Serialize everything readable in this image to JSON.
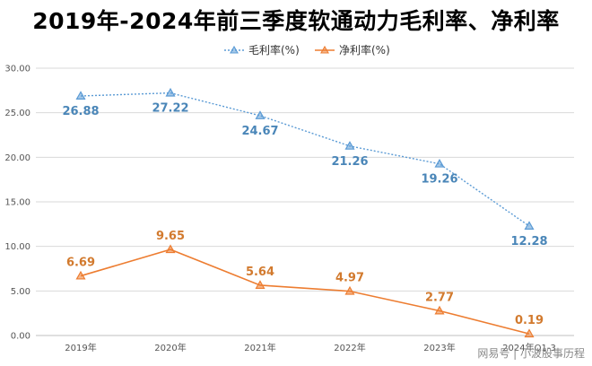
{
  "chart_data": {
    "type": "line",
    "title": "2019年-2024年前三季度软通动力毛利率、净利率",
    "categories": [
      "2019年",
      "2020年",
      "2021年",
      "2022年",
      "2023年",
      "2024年Q1-3"
    ],
    "series": [
      {
        "name": "毛利率(%)",
        "values": [
          26.88,
          27.22,
          24.67,
          21.26,
          19.26,
          12.28
        ],
        "color": "#5b9bd5",
        "line": "dotted",
        "marker": "triangle"
      },
      {
        "name": "净利率(%)",
        "values": [
          6.69,
          9.65,
          5.64,
          4.97,
          2.77,
          0.19
        ],
        "color": "#ed7d31",
        "line": "solid",
        "marker": "triangle"
      }
    ],
    "yticks": [
      "0.00",
      "5.00",
      "10.00",
      "15.00",
      "20.00",
      "25.00",
      "30.00"
    ],
    "ylim": [
      0,
      30
    ],
    "grid": true,
    "legend": "top-center",
    "label_colors": {
      "毛利率(%)": "#4a86b8",
      "净利率(%)": "#d27a2e"
    }
  },
  "watermark": "网易号 | 小波股事历程"
}
